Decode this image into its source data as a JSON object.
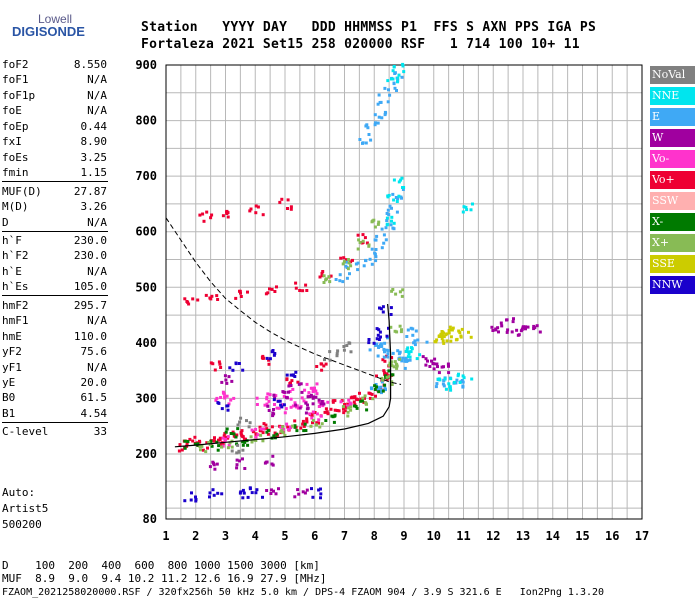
{
  "logo": {
    "line1": "Lowell",
    "line2": "DIGISONDE"
  },
  "header": {
    "line1": "Station   YYYY DAY   DDD HHMMSS P1  FFS S AXN PPS IGA PS",
    "line2": "Fortaleza 2021 Set15 258 020000 RSF   1 714 100 10+ 11"
  },
  "params": [
    {
      "label": "foF2",
      "value": "8.550"
    },
    {
      "label": "foF1",
      "value": "N/A"
    },
    {
      "label": "foF1p",
      "value": "N/A"
    },
    {
      "label": "foE",
      "value": "N/A"
    },
    {
      "label": "foEp",
      "value": "0.44"
    },
    {
      "label": "fxI",
      "value": "8.90"
    },
    {
      "label": "foEs",
      "value": "3.25"
    },
    {
      "label": "fmin",
      "value": "1.15"
    },
    {
      "label": "MUF(D)",
      "value": "27.87"
    },
    {
      "label": "M(D)",
      "value": "3.26"
    },
    {
      "label": "D",
      "value": "N/A"
    },
    {
      "label": "h`F",
      "value": "230.0"
    },
    {
      "label": "h`F2",
      "value": "230.0"
    },
    {
      "label": "h`E",
      "value": "N/A"
    },
    {
      "label": "h`Es",
      "value": "105.0"
    },
    {
      "label": "hmF2",
      "value": "295.7"
    },
    {
      "label": "hmF1",
      "value": "N/A"
    },
    {
      "label": "hmE",
      "value": "110.0"
    },
    {
      "label": "yF2",
      "value": "75.6"
    },
    {
      "label": "yF1",
      "value": "N/A"
    },
    {
      "label": "yE",
      "value": "20.0"
    },
    {
      "label": "B0",
      "value": "61.5"
    },
    {
      "label": "B1",
      "value": "4.54"
    },
    {
      "label": "C-level",
      "value": "33"
    }
  ],
  "auto": {
    "line1": "Auto:",
    "line2": "Artist5",
    "line3": "500200"
  },
  "legend": [
    {
      "label": "NoVal",
      "color": "#808080"
    },
    {
      "label": "NNE",
      "color": "#00e5ee"
    },
    {
      "label": "E",
      "color": "#3fa9f5"
    },
    {
      "label": "W",
      "color": "#a0009f"
    },
    {
      "label": "Vo-",
      "color": "#ff33cc"
    },
    {
      "label": "Vo+",
      "color": "#ee0033"
    },
    {
      "label": "SSW",
      "color": "#ffb0b0"
    },
    {
      "label": "X-",
      "color": "#007a00"
    },
    {
      "label": "X+",
      "color": "#88bb55"
    },
    {
      "label": "SSE",
      "color": "#cccc00"
    },
    {
      "label": "NNW",
      "color": "#1a00cc"
    }
  ],
  "footer": {
    "line1": "D    100  200  400  600  800 1000 1500 3000 [km]",
    "line2": "MUF  8.9  9.0  9.4 10.2 11.2 12.6 16.9 27.9 [MHz]",
    "line3": "FZAOM_2021258020000.RSF / 320fx256h 50 kHz 5.0 km / DPS-4 FZAOM 904 / 3.9 S 321.6 E   Ion2Png 1.3.20"
  },
  "chart_data": {
    "type": "scatter",
    "xlim": [
      1,
      17
    ],
    "ylim": [
      80,
      900
    ],
    "x_ticks": [
      "1",
      "2",
      "3",
      "4",
      "5",
      "6",
      "7",
      "8",
      "9",
      "10",
      "11",
      "12",
      "13",
      "14",
      "15",
      "16",
      "17"
    ],
    "y_ticks": [
      "80",
      "200",
      "300",
      "400",
      "500",
      "600",
      "700",
      "800",
      "900"
    ],
    "y_tick_values": [
      80,
      200,
      300,
      400,
      500,
      600,
      700,
      800,
      900
    ],
    "grid": true,
    "legend_position": "right",
    "series": [
      {
        "name": "Vo+",
        "color": "#ee0033",
        "points": [
          [
            1.6,
            215
          ],
          [
            2.0,
            218
          ],
          [
            2.5,
            222
          ],
          [
            3.0,
            228
          ],
          [
            3.5,
            232
          ],
          [
            4.0,
            238
          ],
          [
            4.5,
            243
          ],
          [
            5.0,
            250
          ],
          [
            5.5,
            256
          ],
          [
            6.0,
            265
          ],
          [
            6.5,
            275
          ],
          [
            7.0,
            285
          ],
          [
            7.5,
            298
          ],
          [
            7.8,
            310
          ],
          [
            8.1,
            325
          ],
          [
            8.3,
            345
          ],
          [
            8.45,
            370
          ],
          [
            1.8,
            480
          ],
          [
            2.5,
            482
          ],
          [
            3.5,
            487
          ],
          [
            4.5,
            495
          ],
          [
            5.5,
            505
          ],
          [
            6.3,
            525
          ],
          [
            7.0,
            553
          ],
          [
            7.6,
            590
          ],
          [
            2.3,
            630
          ],
          [
            3.0,
            632
          ],
          [
            4.0,
            640
          ],
          [
            5.0,
            652
          ],
          [
            2.7,
            362
          ],
          [
            4.4,
            372
          ],
          [
            5.2,
            335
          ],
          [
            6.2,
            360
          ],
          [
            1.8,
            225
          ],
          [
            2.8,
            232
          ],
          [
            3.3,
            240
          ],
          [
            4.3,
            250
          ],
          [
            5.8,
            270
          ],
          [
            6.8,
            290
          ],
          [
            7.4,
            305
          ],
          [
            8.2,
            340
          ]
        ]
      },
      {
        "name": "Vo-",
        "color": "#ff33cc",
        "points": [
          [
            4.5,
            305
          ],
          [
            5.0,
            310
          ],
          [
            5.5,
            300
          ],
          [
            6.0,
            315
          ],
          [
            6.3,
            290
          ],
          [
            4.8,
            285
          ],
          [
            5.3,
            292
          ],
          [
            5.8,
            320
          ],
          [
            4.2,
            298
          ],
          [
            2.8,
            305
          ],
          [
            3.1,
            300
          ],
          [
            3.0,
            225
          ],
          [
            4.0,
            240
          ],
          [
            5.0,
            255
          ],
          [
            6.0,
            272
          ],
          [
            7.0,
            293
          ]
        ]
      },
      {
        "name": "E",
        "color": "#3fa9f5",
        "points": [
          [
            8.0,
            395
          ],
          [
            8.3,
            385
          ],
          [
            8.6,
            380
          ],
          [
            8.9,
            375
          ],
          [
            9.1,
            365
          ],
          [
            8.2,
            405
          ],
          [
            7.8,
            548
          ],
          [
            8.0,
            565
          ],
          [
            8.2,
            590
          ],
          [
            8.4,
            615
          ],
          [
            8.55,
            640
          ],
          [
            8.7,
            670
          ],
          [
            7.7,
            770
          ],
          [
            7.9,
            790
          ],
          [
            8.1,
            815
          ],
          [
            8.3,
            840
          ],
          [
            8.5,
            865
          ],
          [
            8.7,
            880
          ],
          [
            7.2,
            540
          ],
          [
            6.9,
            520
          ],
          [
            10.5,
            335
          ],
          [
            10.8,
            328
          ],
          [
            10.1,
            330
          ],
          [
            9.2,
            420
          ],
          [
            9.5,
            400
          ],
          [
            8.0,
            328
          ],
          [
            8.1,
            318
          ]
        ]
      },
      {
        "name": "NNE",
        "color": "#00e5ee",
        "points": [
          [
            8.6,
            660
          ],
          [
            8.8,
            690
          ],
          [
            8.4,
            620
          ],
          [
            8.6,
            880
          ],
          [
            8.8,
            895
          ],
          [
            9.0,
            395
          ],
          [
            9.3,
            380
          ],
          [
            10.6,
            325
          ],
          [
            11.0,
            338
          ],
          [
            11.15,
            645
          ],
          [
            10.3,
            332
          ]
        ]
      },
      {
        "name": "W",
        "color": "#a0009f",
        "points": [
          [
            4.8,
            308
          ],
          [
            5.3,
            320
          ],
          [
            5.8,
            302
          ],
          [
            6.1,
            296
          ],
          [
            4.6,
            280
          ],
          [
            5.5,
            282
          ],
          [
            9.8,
            370
          ],
          [
            10.0,
            360
          ],
          [
            10.3,
            358
          ],
          [
            12.1,
            428
          ],
          [
            12.6,
            420
          ],
          [
            13.0,
            425
          ],
          [
            13.3,
            430
          ],
          [
            12.4,
            440
          ],
          [
            2.5,
            180
          ],
          [
            3.5,
            185
          ],
          [
            4.5,
            190
          ],
          [
            3.0,
            335
          ],
          [
            4.5,
            130
          ],
          [
            5.5,
            128
          ]
        ]
      },
      {
        "name": "X-",
        "color": "#007a00",
        "points": [
          [
            1.8,
            218
          ],
          [
            2.5,
            218
          ],
          [
            3.5,
            225
          ],
          [
            4.5,
            236
          ],
          [
            5.5,
            250
          ],
          [
            6.5,
            268
          ],
          [
            7.5,
            290
          ],
          [
            8.1,
            318
          ],
          [
            8.4,
            345
          ],
          [
            3.2,
            240
          ]
        ]
      },
      {
        "name": "X+",
        "color": "#88bb55",
        "points": [
          [
            2.2,
            215
          ],
          [
            3.0,
            222
          ],
          [
            4.0,
            232
          ],
          [
            5.0,
            244
          ],
          [
            6.0,
            260
          ],
          [
            7.0,
            280
          ],
          [
            7.8,
            300
          ],
          [
            8.4,
            335
          ],
          [
            8.6,
            365
          ],
          [
            8.65,
            430
          ],
          [
            8.75,
            490
          ],
          [
            6.4,
            515
          ],
          [
            7.0,
            545
          ],
          [
            7.6,
            580
          ],
          [
            8.1,
            615
          ],
          [
            8.7,
            365
          ]
        ]
      },
      {
        "name": "SSE",
        "color": "#cccc00",
        "points": [
          [
            10.1,
            420
          ],
          [
            10.4,
            418
          ],
          [
            10.7,
            425
          ],
          [
            11.0,
            415
          ],
          [
            10.5,
            405
          ],
          [
            10.2,
            412
          ]
        ]
      },
      {
        "name": "NNW",
        "color": "#1a00cc",
        "points": [
          [
            8.3,
            460
          ],
          [
            8.2,
            420
          ],
          [
            8.0,
            405
          ],
          [
            4.7,
            295
          ],
          [
            4.5,
            380
          ],
          [
            3.3,
            360
          ],
          [
            2.9,
            290
          ],
          [
            5.1,
            345
          ],
          [
            3.5,
            128
          ],
          [
            2.6,
            128
          ],
          [
            1.8,
            125
          ],
          [
            4.0,
            132
          ],
          [
            6.0,
            130
          ]
        ]
      },
      {
        "name": "NoVal",
        "color": "#808080",
        "points": [
          [
            6.5,
            380
          ],
          [
            3.6,
            260
          ],
          [
            7.1,
            395
          ],
          [
            3.3,
            210
          ]
        ]
      }
    ],
    "profile_curve": [
      [
        1.3,
        213
      ],
      [
        2.0,
        216
      ],
      [
        3.0,
        221
      ],
      [
        4.0,
        226
      ],
      [
        5.0,
        231
      ],
      [
        6.0,
        237
      ],
      [
        7.0,
        245
      ],
      [
        7.8,
        255
      ],
      [
        8.3,
        268
      ],
      [
        8.5,
        285
      ],
      [
        8.55,
        300
      ],
      [
        8.55,
        380
      ],
      [
        8.5,
        440
      ],
      [
        8.45,
        470
      ]
    ],
    "muf_curve": [
      [
        1.0,
        625
      ],
      [
        1.5,
        585
      ],
      [
        2.0,
        545
      ],
      [
        2.5,
        510
      ],
      [
        3.0,
        480
      ],
      [
        3.5,
        458
      ],
      [
        4.0,
        437
      ],
      [
        4.5,
        420
      ],
      [
        5.0,
        405
      ],
      [
        5.5,
        392
      ],
      [
        6.0,
        380
      ],
      [
        6.5,
        370
      ],
      [
        7.0,
        360
      ],
      [
        7.5,
        350
      ],
      [
        8.0,
        340
      ],
      [
        8.5,
        330
      ],
      [
        8.9,
        325
      ]
    ]
  }
}
